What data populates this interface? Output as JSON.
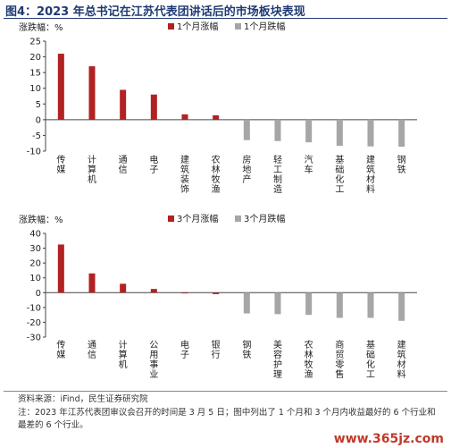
{
  "title": "图4：2023 年总书记在江苏代表团讲话后的市场板块表现",
  "colors": {
    "up": "#b22222",
    "down": "#a6a6a6",
    "title": "#1f3a73"
  },
  "chart_data": [
    {
      "type": "bar",
      "ylabel": "涨跌幅：%",
      "ylim": [
        -10,
        25
      ],
      "yticks": [
        -10,
        -5,
        0,
        5,
        10,
        15,
        20,
        25
      ],
      "legend_position": "top-right",
      "series": [
        {
          "name": "1个月涨幅",
          "color": "#b22222"
        },
        {
          "name": "1个月跌幅",
          "color": "#a6a6a6"
        }
      ],
      "categories": [
        "传媒",
        "计算机",
        "通信",
        "电子",
        "建筑装饰",
        "农林牧渔",
        "房地产",
        "轻工制造",
        "汽车",
        "基础化工",
        "建筑材料",
        "钢铁"
      ],
      "values": [
        21,
        17,
        9.5,
        8,
        1.7,
        1.4,
        -6.5,
        -6.8,
        -7.2,
        -8.3,
        -8.5,
        -8.6
      ],
      "series_index": [
        0,
        0,
        0,
        0,
        0,
        0,
        1,
        1,
        1,
        1,
        1,
        1
      ]
    },
    {
      "type": "bar",
      "ylabel": "涨跌幅：%",
      "ylim": [
        -30,
        40
      ],
      "yticks": [
        -30,
        -20,
        -10,
        0,
        10,
        20,
        30,
        40
      ],
      "legend_position": "top-right",
      "series": [
        {
          "name": "3个月涨幅",
          "color": "#b22222"
        },
        {
          "name": "3个月跌幅",
          "color": "#a6a6a6"
        }
      ],
      "categories": [
        "传媒",
        "通信",
        "计算机",
        "公用事业",
        "电子",
        "银行",
        "钢铁",
        "美容护理",
        "农林牧渔",
        "商贸零售",
        "基础化工",
        "建筑材料"
      ],
      "values": [
        32.5,
        13,
        6,
        2.5,
        -0.5,
        -1,
        -14,
        -14.5,
        -15,
        -17,
        -17,
        -19
      ],
      "series_index": [
        0,
        0,
        0,
        0,
        0,
        0,
        1,
        1,
        1,
        1,
        1,
        1
      ]
    }
  ],
  "source": "资料来源：iFind，民生证券研究院",
  "note": "注：2023 年江苏代表团审议会召开的时间是 3 月 5 日；图中列出了 1 个月和 3 个月内收益最好的 6 个行业和最差的 6 个行业。",
  "watermark": "www.365jz.com"
}
